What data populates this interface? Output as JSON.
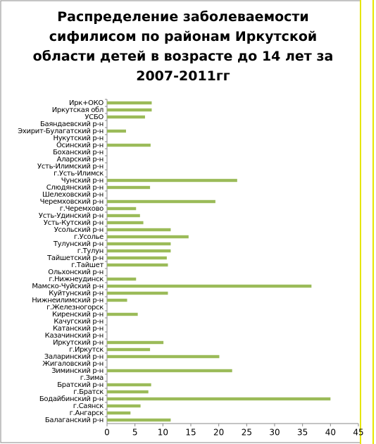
{
  "chart_data": {
    "type": "hbar",
    "title": "Распределение заболеваемости сифилисом по районам Иркутской области детей в возрасте до 14 лет за 2007-2011гг",
    "categories": [
      "Ирк+ОКО",
      "Иркутская обл",
      "УСБО",
      "Баяндаевский р-н",
      "Эхирит-Булагатский р-н",
      "Нукутский р-н",
      "Осинский р-н",
      "Боханский р-н",
      "Аларский р-н",
      "Усть-Илимский р-н",
      "г.Усть-Илимск",
      "Чунский р-н",
      "Слюдянский р-н",
      "Шелеховский р-н",
      "Черемховский р-н",
      "г.Черемхово",
      "Усть-Удинский р-н",
      "Усть-Кутский р-н",
      "Усольский р-н",
      "г.Усолье",
      "Тулунский р-н",
      "г.Тулун",
      "Тайшетский р-н",
      "г.Тайшет",
      "Ольхонский р-н",
      "г.Нижнеудинск",
      "Мамско-Чуйский р-н",
      "Куйтунский р-н",
      "Нижнеилимский р-н",
      "г.Железногорск",
      "Киренский р-н",
      "Качугский р-н",
      "Катанский р-н",
      "Казачинский р-н",
      "Иркутский р-н",
      "г.Иркутск",
      "Заларинский р-н",
      "Жигаловский р-н",
      "Зиминский р-н",
      "г.Зима",
      "Братский р-н",
      "г.Братск",
      "Бодайбинский р-н",
      "г.Саянск",
      "г.Ангарск",
      "Балаганский р-н"
    ],
    "values": [
      8.0,
      8.0,
      6.8,
      0,
      3.4,
      0,
      7.8,
      0,
      0,
      0,
      0,
      23.3,
      7.7,
      0,
      19.4,
      5.2,
      5.9,
      6.5,
      11.4,
      14.6,
      11.4,
      11.4,
      10.7,
      10.9,
      0,
      5.2,
      36.6,
      10.9,
      3.6,
      0,
      5.5,
      0,
      0,
      0,
      10.1,
      7.7,
      20.1,
      0,
      22.4,
      0,
      7.9,
      7.4,
      40.0,
      6.0,
      4.2,
      11.4
    ],
    "color": "#9bbb59",
    "xlim": [
      0,
      45
    ],
    "xticks": [
      0,
      5,
      10,
      15,
      20,
      25,
      30,
      35,
      40,
      45
    ]
  }
}
